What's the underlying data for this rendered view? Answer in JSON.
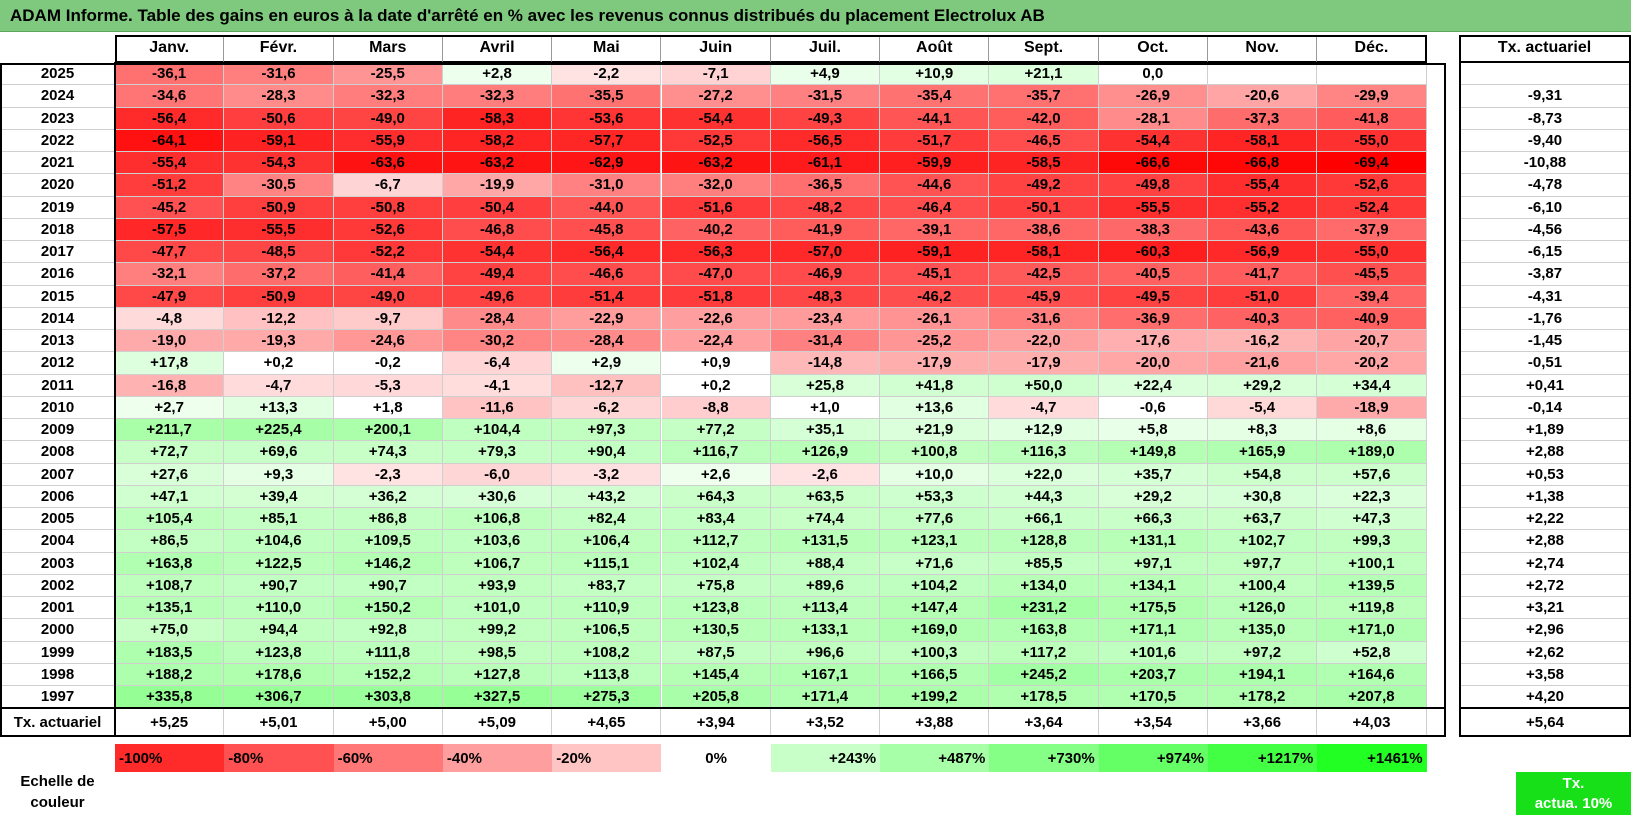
{
  "title": "ADAM Informe. Table des gains en euros à la date d'arrêté en % avec les revenus connus distribués du placement Electrolux AB",
  "colors": {
    "title_bg": "#7fc97f",
    "neg_strong": "#ff0000",
    "neg_light": "#ffe4e4",
    "pos_light": "#f2fff2",
    "pos_strong": "#30ff30",
    "legend_tx_bg": "#18e018"
  },
  "chart_data": {
    "type": "table",
    "months": [
      "Janv.",
      "Févr.",
      "Mars",
      "Avril",
      "Mai",
      "Juin",
      "Juil.",
      "Août",
      "Sept.",
      "Oct.",
      "Nov.",
      "Déc."
    ],
    "annual_header": "Tx. actuariel",
    "rows": [
      {
        "year": "2025",
        "values": [
          "-36,1",
          "-31,6",
          "-25,5",
          "+2,8",
          "-2,2",
          "-7,1",
          "+4,9",
          "+10,9",
          "+21,1",
          "0,0",
          "",
          ""
        ],
        "annual": ""
      },
      {
        "year": "2024",
        "values": [
          "-34,6",
          "-28,3",
          "-32,3",
          "-32,3",
          "-35,5",
          "-27,2",
          "-31,5",
          "-35,4",
          "-35,7",
          "-26,9",
          "-20,6",
          "-29,9"
        ],
        "annual": "-9,31"
      },
      {
        "year": "2023",
        "values": [
          "-56,4",
          "-50,6",
          "-49,0",
          "-58,3",
          "-53,6",
          "-54,4",
          "-49,3",
          "-44,1",
          "-42,0",
          "-28,1",
          "-37,3",
          "-41,8"
        ],
        "annual": "-8,73"
      },
      {
        "year": "2022",
        "values": [
          "-64,1",
          "-59,1",
          "-55,9",
          "-58,2",
          "-57,7",
          "-52,5",
          "-56,5",
          "-51,7",
          "-46,5",
          "-54,4",
          "-58,1",
          "-55,0"
        ],
        "annual": "-9,40"
      },
      {
        "year": "2021",
        "values": [
          "-55,4",
          "-54,3",
          "-63,6",
          "-63,2",
          "-62,9",
          "-63,2",
          "-61,1",
          "-59,9",
          "-58,5",
          "-66,6",
          "-66,8",
          "-69,4"
        ],
        "annual": "-10,88"
      },
      {
        "year": "2020",
        "values": [
          "-51,2",
          "-30,5",
          "-6,7",
          "-19,9",
          "-31,0",
          "-32,0",
          "-36,5",
          "-44,6",
          "-49,2",
          "-49,8",
          "-55,4",
          "-52,6"
        ],
        "annual": "-4,78"
      },
      {
        "year": "2019",
        "values": [
          "-45,2",
          "-50,9",
          "-50,8",
          "-50,4",
          "-44,0",
          "-51,6",
          "-48,2",
          "-46,4",
          "-50,1",
          "-55,5",
          "-55,2",
          "-52,4"
        ],
        "annual": "-6,10"
      },
      {
        "year": "2018",
        "values": [
          "-57,5",
          "-55,5",
          "-52,6",
          "-46,8",
          "-45,8",
          "-40,2",
          "-41,9",
          "-39,1",
          "-38,6",
          "-38,3",
          "-43,6",
          "-37,9"
        ],
        "annual": "-4,56"
      },
      {
        "year": "2017",
        "values": [
          "-47,7",
          "-48,5",
          "-52,2",
          "-54,4",
          "-56,4",
          "-56,3",
          "-57,0",
          "-59,1",
          "-58,1",
          "-60,3",
          "-56,9",
          "-55,0"
        ],
        "annual": "-6,15"
      },
      {
        "year": "2016",
        "values": [
          "-32,1",
          "-37,2",
          "-41,4",
          "-49,4",
          "-46,6",
          "-47,0",
          "-46,9",
          "-45,1",
          "-42,5",
          "-40,5",
          "-41,7",
          "-45,5"
        ],
        "annual": "-3,87"
      },
      {
        "year": "2015",
        "values": [
          "-47,9",
          "-50,9",
          "-49,0",
          "-49,6",
          "-51,4",
          "-51,8",
          "-48,3",
          "-46,2",
          "-45,9",
          "-49,5",
          "-51,0",
          "-39,4"
        ],
        "annual": "-4,31"
      },
      {
        "year": "2014",
        "values": [
          "-4,8",
          "-12,2",
          "-9,7",
          "-28,4",
          "-22,9",
          "-22,6",
          "-23,4",
          "-26,1",
          "-31,6",
          "-36,9",
          "-40,3",
          "-40,9"
        ],
        "annual": "-1,76"
      },
      {
        "year": "2013",
        "values": [
          "-19,0",
          "-19,3",
          "-24,6",
          "-30,2",
          "-28,4",
          "-22,4",
          "-31,4",
          "-25,2",
          "-22,0",
          "-17,6",
          "-16,2",
          "-20,7"
        ],
        "annual": "-1,45"
      },
      {
        "year": "2012",
        "values": [
          "+17,8",
          "+0,2",
          "-0,2",
          "-6,4",
          "+2,9",
          "+0,9",
          "-14,8",
          "-17,9",
          "-17,9",
          "-20,0",
          "-21,6",
          "-20,2"
        ],
        "annual": "-0,51"
      },
      {
        "year": "2011",
        "values": [
          "-16,8",
          "-4,7",
          "-5,3",
          "-4,1",
          "-12,7",
          "+0,2",
          "+25,8",
          "+41,8",
          "+50,0",
          "+22,4",
          "+29,2",
          "+34,4"
        ],
        "annual": "+0,41"
      },
      {
        "year": "2010",
        "values": [
          "+2,7",
          "+13,3",
          "+1,8",
          "-11,6",
          "-6,2",
          "-8,8",
          "+1,0",
          "+13,6",
          "-4,7",
          "-0,6",
          "-5,4",
          "-18,9"
        ],
        "annual": "-0,14"
      },
      {
        "year": "2009",
        "values": [
          "+211,7",
          "+225,4",
          "+200,1",
          "+104,4",
          "+97,3",
          "+77,2",
          "+35,1",
          "+21,9",
          "+12,9",
          "+5,8",
          "+8,3",
          "+8,6"
        ],
        "annual": "+1,89"
      },
      {
        "year": "2008",
        "values": [
          "+72,7",
          "+69,6",
          "+74,3",
          "+79,3",
          "+90,4",
          "+116,7",
          "+126,9",
          "+100,8",
          "+116,3",
          "+149,8",
          "+165,9",
          "+189,0"
        ],
        "annual": "+2,88"
      },
      {
        "year": "2007",
        "values": [
          "+27,6",
          "+9,3",
          "-2,3",
          "-6,0",
          "-3,2",
          "+2,6",
          "-2,6",
          "+10,0",
          "+22,0",
          "+35,7",
          "+54,8",
          "+57,6"
        ],
        "annual": "+0,53"
      },
      {
        "year": "2006",
        "values": [
          "+47,1",
          "+39,4",
          "+36,2",
          "+30,6",
          "+43,2",
          "+64,3",
          "+63,5",
          "+53,3",
          "+44,3",
          "+29,2",
          "+30,8",
          "+22,3"
        ],
        "annual": "+1,38"
      },
      {
        "year": "2005",
        "values": [
          "+105,4",
          "+85,1",
          "+86,8",
          "+106,8",
          "+82,4",
          "+83,4",
          "+74,4",
          "+77,6",
          "+66,1",
          "+66,3",
          "+63,7",
          "+47,3"
        ],
        "annual": "+2,22"
      },
      {
        "year": "2004",
        "values": [
          "+86,5",
          "+104,6",
          "+109,5",
          "+103,6",
          "+106,4",
          "+112,7",
          "+131,5",
          "+123,1",
          "+128,8",
          "+131,1",
          "+102,7",
          "+99,3"
        ],
        "annual": "+2,88"
      },
      {
        "year": "2003",
        "values": [
          "+163,8",
          "+122,5",
          "+146,2",
          "+106,7",
          "+115,1",
          "+102,4",
          "+88,4",
          "+71,6",
          "+85,5",
          "+97,1",
          "+97,7",
          "+100,1"
        ],
        "annual": "+2,74"
      },
      {
        "year": "2002",
        "values": [
          "+108,7",
          "+90,7",
          "+90,7",
          "+93,9",
          "+83,7",
          "+75,8",
          "+89,6",
          "+104,2",
          "+134,0",
          "+134,1",
          "+100,4",
          "+139,5"
        ],
        "annual": "+2,72"
      },
      {
        "year": "2001",
        "values": [
          "+135,1",
          "+110,0",
          "+150,2",
          "+101,0",
          "+110,9",
          "+123,8",
          "+113,4",
          "+147,4",
          "+231,2",
          "+175,5",
          "+126,0",
          "+119,8"
        ],
        "annual": "+3,21"
      },
      {
        "year": "2000",
        "values": [
          "+75,0",
          "+94,4",
          "+92,8",
          "+99,2",
          "+106,5",
          "+130,5",
          "+133,1",
          "+169,0",
          "+163,8",
          "+171,1",
          "+135,0",
          "+171,0"
        ],
        "annual": "+2,96"
      },
      {
        "year": "1999",
        "values": [
          "+183,5",
          "+123,8",
          "+111,8",
          "+98,5",
          "+108,2",
          "+87,5",
          "+96,6",
          "+100,3",
          "+117,2",
          "+101,6",
          "+97,2",
          "+52,8"
        ],
        "annual": "+2,62"
      },
      {
        "year": "1998",
        "values": [
          "+188,2",
          "+178,6",
          "+152,2",
          "+127,8",
          "+113,8",
          "+145,4",
          "+167,1",
          "+166,5",
          "+245,2",
          "+203,7",
          "+194,1",
          "+164,6"
        ],
        "annual": "+3,58"
      },
      {
        "year": "1997",
        "values": [
          "+335,8",
          "+306,7",
          "+303,8",
          "+327,5",
          "+275,3",
          "+205,8",
          "+171,4",
          "+199,2",
          "+178,5",
          "+170,5",
          "+178,2",
          "+207,8"
        ],
        "annual": "+4,20"
      }
    ],
    "summary_row": {
      "label": "Tx. actuariel",
      "values": [
        "+5,25",
        "+5,01",
        "+5,00",
        "+5,09",
        "+4,65",
        "+3,94",
        "+3,52",
        "+3,88",
        "+3,64",
        "+3,54",
        "+3,66",
        "+4,03"
      ],
      "annual": "+5,64"
    },
    "legend": {
      "label_line1": "Echelle de",
      "label_line2": "couleur",
      "steps": [
        {
          "label": "-100%",
          "value": -100
        },
        {
          "label": "-80%",
          "value": -80
        },
        {
          "label": "-60%",
          "value": -60
        },
        {
          "label": "-40%",
          "value": -40
        },
        {
          "label": "-20%",
          "value": -20
        },
        {
          "label": "0%",
          "value": 0
        },
        {
          "label": "+243%",
          "value": 243
        },
        {
          "label": "+487%",
          "value": 487
        },
        {
          "label": "+730%",
          "value": 730
        },
        {
          "label": "+974%",
          "value": 974
        },
        {
          "label": "+1217%",
          "value": 1217
        },
        {
          "label": "+1461%",
          "value": 1461
        }
      ],
      "tx_line1": "Tx.",
      "tx_line2": "actua. 10%"
    }
  }
}
